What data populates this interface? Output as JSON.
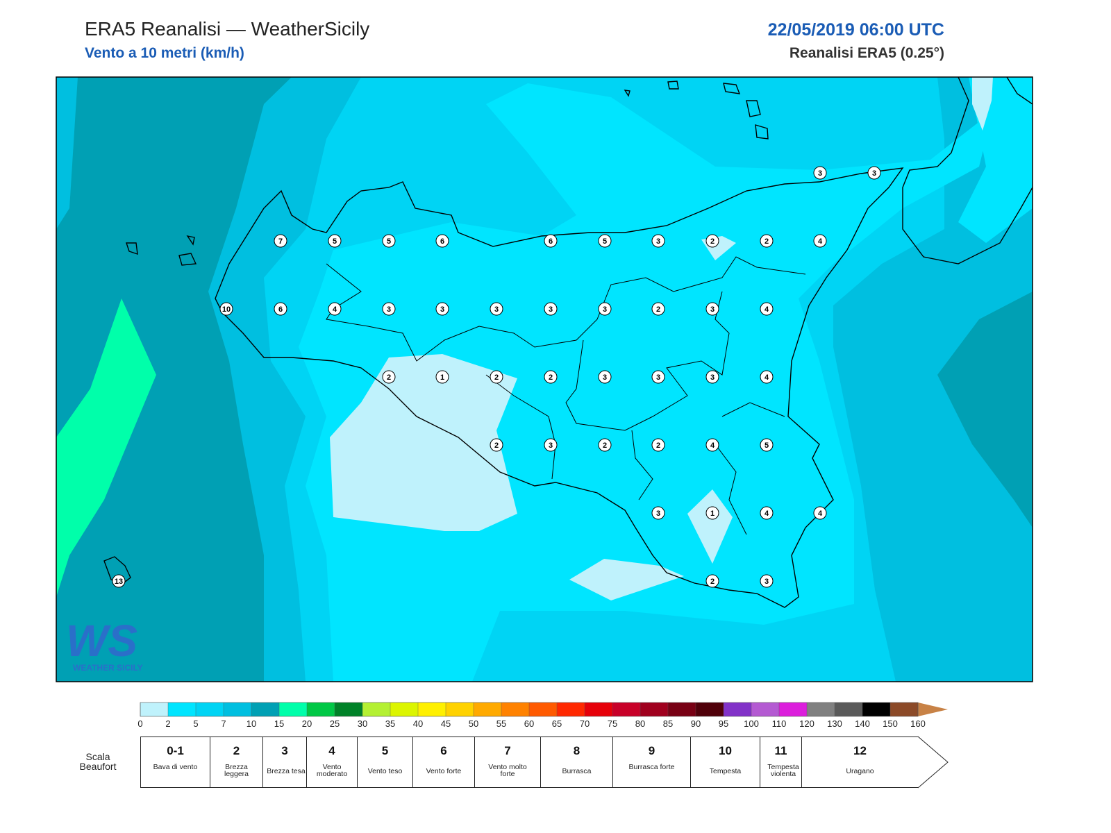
{
  "header": {
    "title": "ERA5 Reanalisi — WeatherSicily",
    "subtitle": "Vento a 10 metri (km/h)",
    "datetime": "22/05/2019 06:00 UTC",
    "source": "Reanalisi ERA5 (0.25°)"
  },
  "map": {
    "stations": [
      3,
      3,
      7,
      5,
      5,
      6,
      6,
      5,
      3,
      2,
      2,
      4,
      10,
      6,
      4,
      3,
      3,
      3,
      3,
      3,
      2,
      3,
      4,
      2,
      1,
      2,
      2,
      3,
      3,
      3,
      4,
      2,
      3,
      2,
      2,
      4,
      5,
      3,
      1,
      4,
      4,
      2,
      3,
      13
    ]
  },
  "logo": {
    "mark": "WS",
    "text": "WEATHER SICILY"
  },
  "colorbar": {
    "ticks": [
      0,
      2,
      5,
      7,
      10,
      15,
      20,
      25,
      30,
      35,
      40,
      45,
      50,
      55,
      60,
      65,
      70,
      75,
      80,
      85,
      90,
      95,
      100,
      110,
      120,
      130,
      140,
      150,
      160
    ],
    "colors": [
      "#bff2fc",
      "#00e5ff",
      "#00d4f4",
      "#00bfe0",
      "#00a0b4",
      "#00ffaa",
      "#00c846",
      "#008228",
      "#b4f032",
      "#dcf500",
      "#fff000",
      "#ffd200",
      "#ffaa00",
      "#ff8200",
      "#ff5a00",
      "#ff2800",
      "#e6000a",
      "#c80028",
      "#a0001e",
      "#780014",
      "#50000a",
      "#8232c8",
      "#b45ad2",
      "#dc1edc",
      "#808080",
      "#5a5a5a",
      "#000000",
      "#8c4a28"
    ],
    "extend_color": "#c88246"
  },
  "beaufort": {
    "label": "Scala Beaufort",
    "classes": [
      {
        "force": "0-1",
        "name": "Bava di vento"
      },
      {
        "force": 2,
        "name": "Brezza leggera"
      },
      {
        "force": 3,
        "name": "Brezza tesa"
      },
      {
        "force": 4,
        "name": "Vento moderato"
      },
      {
        "force": 5,
        "name": "Vento teso"
      },
      {
        "force": 6,
        "name": "Vento forte"
      },
      {
        "force": 7,
        "name": "Vento molto forte"
      },
      {
        "force": 8,
        "name": "Burrasca"
      },
      {
        "force": 9,
        "name": "Burrasca forte"
      },
      {
        "force": 10,
        "name": "Tempesta"
      },
      {
        "force": 11,
        "name": "Tempesta violenta"
      },
      {
        "force": 12,
        "name": "Uragano"
      }
    ]
  }
}
